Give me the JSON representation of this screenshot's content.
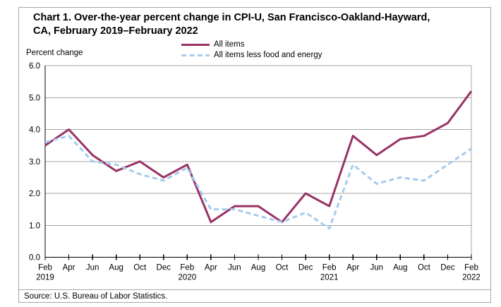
{
  "title": {
    "line1": "Chart 1. Over-the-year percent change in CPI-U, San Francisco-Oakland-Hayward,",
    "line2": "CA, February 2019–February 2022"
  },
  "source": "Source: U.S. Bureau of Labor Statistics.",
  "colors": {
    "frame_border": "#a6a6a6",
    "grid": "#a6a6a6",
    "axis": "#000000",
    "all_items_line": "#993366",
    "core_line": "#a6cbee"
  },
  "chart_data": {
    "type": "line",
    "title": "Chart 1. Over-the-year percent change in CPI-U, San Francisco-Oakland-Hayward, CA, February 2019–February 2022",
    "xlabel": "",
    "ylabel": "Percent change",
    "ylim": [
      0.0,
      6.0
    ],
    "grid": true,
    "legend_position": "top-center",
    "y_ticks": [
      "0.0",
      "1.0",
      "2.0",
      "3.0",
      "4.0",
      "5.0",
      "6.0"
    ],
    "x_ticks": [
      {
        "month": "Feb",
        "year": "2019"
      },
      {
        "month": "Apr"
      },
      {
        "month": "Jun"
      },
      {
        "month": "Aug"
      },
      {
        "month": "Oct"
      },
      {
        "month": "Dec"
      },
      {
        "month": "Feb",
        "year": "2020"
      },
      {
        "month": "Apr"
      },
      {
        "month": "Jun"
      },
      {
        "month": "Aug"
      },
      {
        "month": "Oct"
      },
      {
        "month": "Dec"
      },
      {
        "month": "Feb",
        "year": "2021"
      },
      {
        "month": "Apr"
      },
      {
        "month": "Jun"
      },
      {
        "month": "Aug"
      },
      {
        "month": "Oct"
      },
      {
        "month": "Dec"
      },
      {
        "month": "Feb",
        "year": "2022"
      }
    ],
    "series": [
      {
        "name": "All items",
        "color": "#993366",
        "dash": false,
        "values": [
          3.5,
          4.0,
          3.2,
          2.7,
          3.0,
          2.5,
          2.9,
          1.1,
          1.6,
          1.6,
          1.1,
          2.0,
          1.6,
          3.8,
          3.2,
          3.7,
          3.8,
          4.2,
          5.2
        ]
      },
      {
        "name": "All items less food and energy",
        "color": "#a6cbee",
        "dash": true,
        "values": [
          3.6,
          3.8,
          3.0,
          2.9,
          2.6,
          2.4,
          2.8,
          1.5,
          1.5,
          1.3,
          1.1,
          1.4,
          0.9,
          2.9,
          2.3,
          2.5,
          2.4,
          2.9,
          3.4
        ]
      }
    ]
  }
}
